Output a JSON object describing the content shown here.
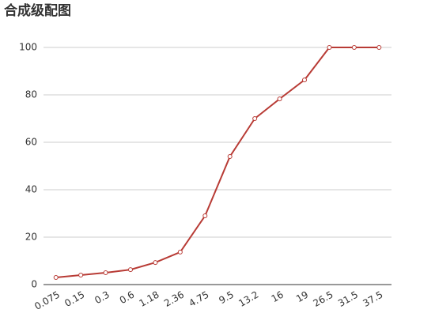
{
  "chart_data": {
    "type": "line",
    "title": "合成级配图",
    "categories": [
      "0.075",
      "0.15",
      "0.3",
      "0.6",
      "1.18",
      "2.36",
      "4.75",
      "9.5",
      "13.2",
      "16",
      "19",
      "26.5",
      "31.5",
      "37.5"
    ],
    "values": [
      3,
      4,
      5,
      6.3,
      9.3,
      13.7,
      29,
      54,
      70,
      78.3,
      86.3,
      100,
      100,
      100
    ],
    "color": "#b83b35",
    "ylim": [
      0,
      100
    ],
    "yticks": [
      0,
      20,
      40,
      60,
      80,
      100
    ],
    "grid": true
  }
}
